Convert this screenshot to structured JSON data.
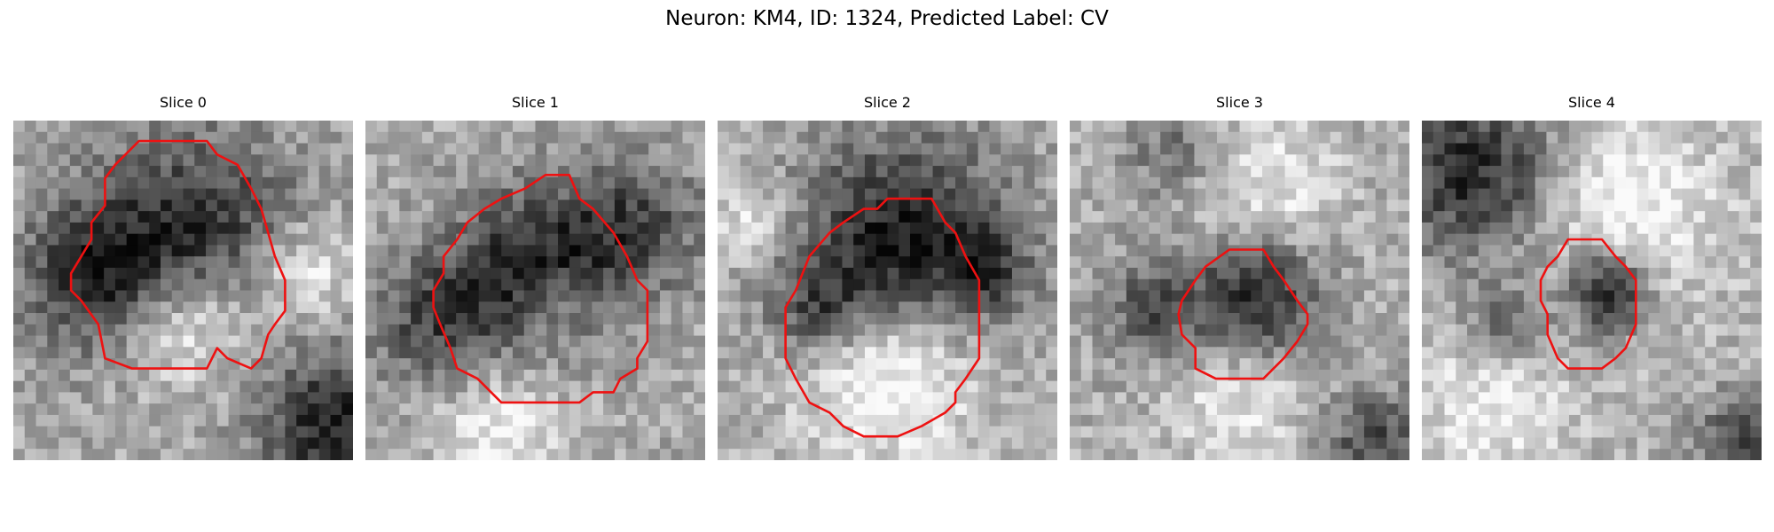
{
  "figure": {
    "title": "Neuron: KM4, ID: 1324, Predicted Label: CV",
    "image_style": "grayscale noisy microscopy patch, 30x30 cells",
    "contour_color": "#ee1111"
  },
  "slices": [
    {
      "title": "Slice 0",
      "mean_intensity": 168,
      "dark_blobs": [
        [
          0.25,
          0.45,
          0.22,
          0.5
        ],
        [
          0.55,
          0.3,
          0.28,
          0.45
        ],
        [
          0.95,
          0.9,
          0.22,
          0.55
        ]
      ],
      "bright_blobs": [
        [
          0.5,
          0.6,
          0.18,
          0.35
        ],
        [
          0.85,
          0.45,
          0.15,
          0.3
        ]
      ],
      "contour": [
        [
          0.37,
          0.06
        ],
        [
          0.57,
          0.06
        ],
        [
          0.6,
          0.1
        ],
        [
          0.66,
          0.13
        ],
        [
          0.7,
          0.2
        ],
        [
          0.73,
          0.26
        ],
        [
          0.75,
          0.33
        ],
        [
          0.77,
          0.4
        ],
        [
          0.8,
          0.47
        ],
        [
          0.8,
          0.53
        ],
        [
          0.8,
          0.56
        ],
        [
          0.77,
          0.6
        ],
        [
          0.75,
          0.63
        ],
        [
          0.73,
          0.7
        ],
        [
          0.7,
          0.73
        ],
        [
          0.63,
          0.7
        ],
        [
          0.6,
          0.67
        ],
        [
          0.57,
          0.73
        ],
        [
          0.47,
          0.73
        ],
        [
          0.43,
          0.73
        ],
        [
          0.35,
          0.73
        ],
        [
          0.27,
          0.7
        ],
        [
          0.25,
          0.6
        ],
        [
          0.2,
          0.53
        ],
        [
          0.17,
          0.5
        ],
        [
          0.17,
          0.45
        ],
        [
          0.2,
          0.4
        ],
        [
          0.23,
          0.35
        ],
        [
          0.23,
          0.3
        ],
        [
          0.27,
          0.25
        ],
        [
          0.27,
          0.17
        ],
        [
          0.3,
          0.13
        ]
      ]
    },
    {
      "title": "Slice 1",
      "mean_intensity": 170,
      "dark_blobs": [
        [
          0.5,
          0.45,
          0.25,
          0.55
        ],
        [
          0.2,
          0.6,
          0.2,
          0.35
        ],
        [
          0.8,
          0.3,
          0.2,
          0.35
        ]
      ],
      "bright_blobs": [
        [
          0.55,
          0.55,
          0.12,
          0.25
        ],
        [
          0.4,
          0.9,
          0.2,
          0.3
        ]
      ],
      "contour": [
        [
          0.53,
          0.16
        ],
        [
          0.6,
          0.16
        ],
        [
          0.63,
          0.23
        ],
        [
          0.67,
          0.26
        ],
        [
          0.73,
          0.33
        ],
        [
          0.77,
          0.4
        ],
        [
          0.8,
          0.47
        ],
        [
          0.83,
          0.5
        ],
        [
          0.83,
          0.55
        ],
        [
          0.83,
          0.65
        ],
        [
          0.8,
          0.7
        ],
        [
          0.8,
          0.73
        ],
        [
          0.75,
          0.76
        ],
        [
          0.73,
          0.8
        ],
        [
          0.67,
          0.8
        ],
        [
          0.63,
          0.83
        ],
        [
          0.6,
          0.83
        ],
        [
          0.47,
          0.83
        ],
        [
          0.4,
          0.83
        ],
        [
          0.37,
          0.8
        ],
        [
          0.33,
          0.76
        ],
        [
          0.27,
          0.73
        ],
        [
          0.25,
          0.67
        ],
        [
          0.22,
          0.6
        ],
        [
          0.2,
          0.55
        ],
        [
          0.2,
          0.5
        ],
        [
          0.23,
          0.45
        ],
        [
          0.23,
          0.4
        ],
        [
          0.27,
          0.35
        ],
        [
          0.3,
          0.3
        ],
        [
          0.35,
          0.26
        ],
        [
          0.4,
          0.23
        ],
        [
          0.47,
          0.2
        ]
      ]
    },
    {
      "title": "Slice 2",
      "mean_intensity": 172,
      "dark_blobs": [
        [
          0.55,
          0.35,
          0.3,
          0.6
        ],
        [
          0.3,
          0.55,
          0.15,
          0.35
        ],
        [
          0.8,
          0.45,
          0.12,
          0.3
        ]
      ],
      "bright_blobs": [
        [
          0.5,
          0.75,
          0.25,
          0.4
        ],
        [
          0.1,
          0.3,
          0.12,
          0.25
        ]
      ],
      "contour": [
        [
          0.5,
          0.23
        ],
        [
          0.63,
          0.23
        ],
        [
          0.67,
          0.3
        ],
        [
          0.7,
          0.33
        ],
        [
          0.73,
          0.4
        ],
        [
          0.77,
          0.47
        ],
        [
          0.77,
          0.55
        ],
        [
          0.77,
          0.7
        ],
        [
          0.73,
          0.76
        ],
        [
          0.7,
          0.8
        ],
        [
          0.7,
          0.83
        ],
        [
          0.67,
          0.86
        ],
        [
          0.6,
          0.9
        ],
        [
          0.53,
          0.93
        ],
        [
          0.5,
          0.93
        ],
        [
          0.43,
          0.93
        ],
        [
          0.37,
          0.9
        ],
        [
          0.33,
          0.86
        ],
        [
          0.27,
          0.83
        ],
        [
          0.23,
          0.76
        ],
        [
          0.2,
          0.7
        ],
        [
          0.2,
          0.6
        ],
        [
          0.2,
          0.55
        ],
        [
          0.23,
          0.5
        ],
        [
          0.25,
          0.45
        ],
        [
          0.27,
          0.4
        ],
        [
          0.33,
          0.33
        ],
        [
          0.37,
          0.3
        ],
        [
          0.43,
          0.26
        ],
        [
          0.47,
          0.26
        ]
      ]
    },
    {
      "title": "Slice 3",
      "mean_intensity": 172,
      "dark_blobs": [
        [
          0.55,
          0.52,
          0.18,
          0.55
        ],
        [
          0.25,
          0.55,
          0.15,
          0.35
        ],
        [
          0.9,
          0.95,
          0.15,
          0.4
        ],
        [
          0.3,
          0.1,
          0.12,
          0.25
        ]
      ],
      "bright_blobs": [
        [
          0.6,
          0.2,
          0.2,
          0.25
        ],
        [
          0.5,
          0.85,
          0.2,
          0.25
        ]
      ],
      "contour": [
        [
          0.47,
          0.38
        ],
        [
          0.57,
          0.38
        ],
        [
          0.6,
          0.43
        ],
        [
          0.63,
          0.47
        ],
        [
          0.67,
          0.53
        ],
        [
          0.7,
          0.57
        ],
        [
          0.7,
          0.6
        ],
        [
          0.67,
          0.65
        ],
        [
          0.63,
          0.7
        ],
        [
          0.6,
          0.73
        ],
        [
          0.57,
          0.76
        ],
        [
          0.47,
          0.76
        ],
        [
          0.43,
          0.76
        ],
        [
          0.37,
          0.73
        ],
        [
          0.37,
          0.67
        ],
        [
          0.33,
          0.63
        ],
        [
          0.32,
          0.57
        ],
        [
          0.33,
          0.53
        ],
        [
          0.37,
          0.47
        ],
        [
          0.4,
          0.43
        ]
      ]
    },
    {
      "title": "Slice 4",
      "mean_intensity": 180,
      "dark_blobs": [
        [
          0.15,
          0.15,
          0.25,
          0.55
        ],
        [
          0.55,
          0.5,
          0.12,
          0.6
        ],
        [
          0.25,
          0.6,
          0.12,
          0.3
        ],
        [
          0.95,
          0.95,
          0.15,
          0.4
        ]
      ],
      "bright_blobs": [
        [
          0.6,
          0.25,
          0.25,
          0.3
        ],
        [
          0.2,
          0.85,
          0.2,
          0.25
        ]
      ],
      "contour": [
        [
          0.43,
          0.35
        ],
        [
          0.53,
          0.35
        ],
        [
          0.57,
          0.4
        ],
        [
          0.6,
          0.43
        ],
        [
          0.63,
          0.47
        ],
        [
          0.63,
          0.53
        ],
        [
          0.63,
          0.6
        ],
        [
          0.6,
          0.67
        ],
        [
          0.57,
          0.7
        ],
        [
          0.53,
          0.73
        ],
        [
          0.47,
          0.73
        ],
        [
          0.43,
          0.73
        ],
        [
          0.4,
          0.7
        ],
        [
          0.37,
          0.63
        ],
        [
          0.37,
          0.57
        ],
        [
          0.35,
          0.53
        ],
        [
          0.35,
          0.47
        ],
        [
          0.37,
          0.43
        ],
        [
          0.4,
          0.4
        ]
      ]
    }
  ]
}
